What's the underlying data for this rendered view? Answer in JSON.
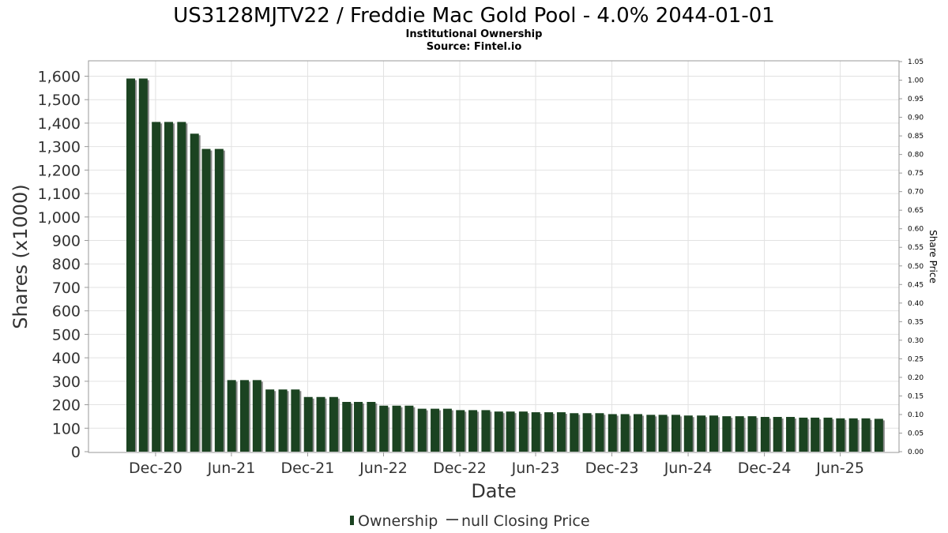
{
  "chart_data": {
    "type": "bar",
    "title": "US3128MJTV22 / Freddie Mac Gold Pool - 4.0% 2044-01-01",
    "subtitle_lines": [
      "Institutional Ownership",
      "Source: Fintel.io"
    ],
    "xlabel": "Date",
    "ylabel": "Shares (x1000)",
    "y2label": "Share Price",
    "ylim": [
      0,
      1650
    ],
    "y2lim": [
      0,
      1.05
    ],
    "yticks": [
      "0",
      "100",
      "200",
      "300",
      "400",
      "500",
      "600",
      "700",
      "800",
      "900",
      "1,000",
      "1,100",
      "1,200",
      "1,300",
      "1,400",
      "1,500",
      "1,600"
    ],
    "y2ticks": [
      "0.00",
      "0.05",
      "0.10",
      "0.15",
      "0.20",
      "0.25",
      "0.30",
      "0.35",
      "0.40",
      "0.45",
      "0.50",
      "0.55",
      "0.60",
      "0.65",
      "0.70",
      "0.75",
      "0.80",
      "0.85",
      "0.90",
      "0.95",
      "1.00",
      "1.05"
    ],
    "xticks": [
      "Dec-20",
      "Jun-21",
      "Dec-21",
      "Jun-22",
      "Dec-22",
      "Jun-23",
      "Dec-23",
      "Jun-24",
      "Dec-24",
      "Jun-25"
    ],
    "x_range": [
      "2020-07-01",
      "2025-10-15"
    ],
    "grid": true,
    "legend_position": "bottom",
    "series": [
      {
        "name": "Ownership",
        "color": "#1b4321",
        "dates": [
          "2020-09-22",
          "2020-10-22",
          "2020-11-22",
          "2020-12-22",
          "2021-01-22",
          "2021-02-22",
          "2021-03-22",
          "2021-04-22",
          "2021-05-22",
          "2021-06-22",
          "2021-07-22",
          "2021-08-22",
          "2021-09-22",
          "2021-10-22",
          "2021-11-22",
          "2021-12-22",
          "2022-01-22",
          "2022-02-22",
          "2022-03-22",
          "2022-04-22",
          "2022-05-22",
          "2022-06-22",
          "2022-07-22",
          "2022-08-22",
          "2022-09-22",
          "2022-10-22",
          "2022-11-22",
          "2022-12-22",
          "2023-01-22",
          "2023-02-22",
          "2023-03-22",
          "2023-04-22",
          "2023-05-22",
          "2023-06-22",
          "2023-07-22",
          "2023-08-22",
          "2023-09-22",
          "2023-10-22",
          "2023-11-22",
          "2023-12-22",
          "2024-01-22",
          "2024-02-22",
          "2024-03-22",
          "2024-04-22",
          "2024-05-22",
          "2024-06-22",
          "2024-07-22",
          "2024-08-22",
          "2024-09-22",
          "2024-10-22",
          "2024-11-22",
          "2024-12-22",
          "2025-01-22",
          "2025-02-22",
          "2025-03-22",
          "2025-04-22",
          "2025-05-22",
          "2025-06-22",
          "2025-07-22",
          "2025-08-22"
        ],
        "values": [
          1590,
          1590,
          1405,
          1405,
          1405,
          1355,
          1290,
          1290,
          305,
          305,
          305,
          265,
          265,
          265,
          233,
          233,
          233,
          212,
          212,
          212,
          196,
          196,
          196,
          183,
          183,
          183,
          177,
          177,
          177,
          171,
          171,
          171,
          168,
          168,
          168,
          164,
          164,
          164,
          160,
          160,
          160,
          157,
          157,
          157,
          154,
          154,
          154,
          151,
          151,
          151,
          148,
          148,
          148,
          145,
          145,
          145,
          142,
          142,
          142,
          140
        ]
      },
      {
        "name": "null Closing Price",
        "color": "#555555",
        "values": []
      }
    ]
  }
}
